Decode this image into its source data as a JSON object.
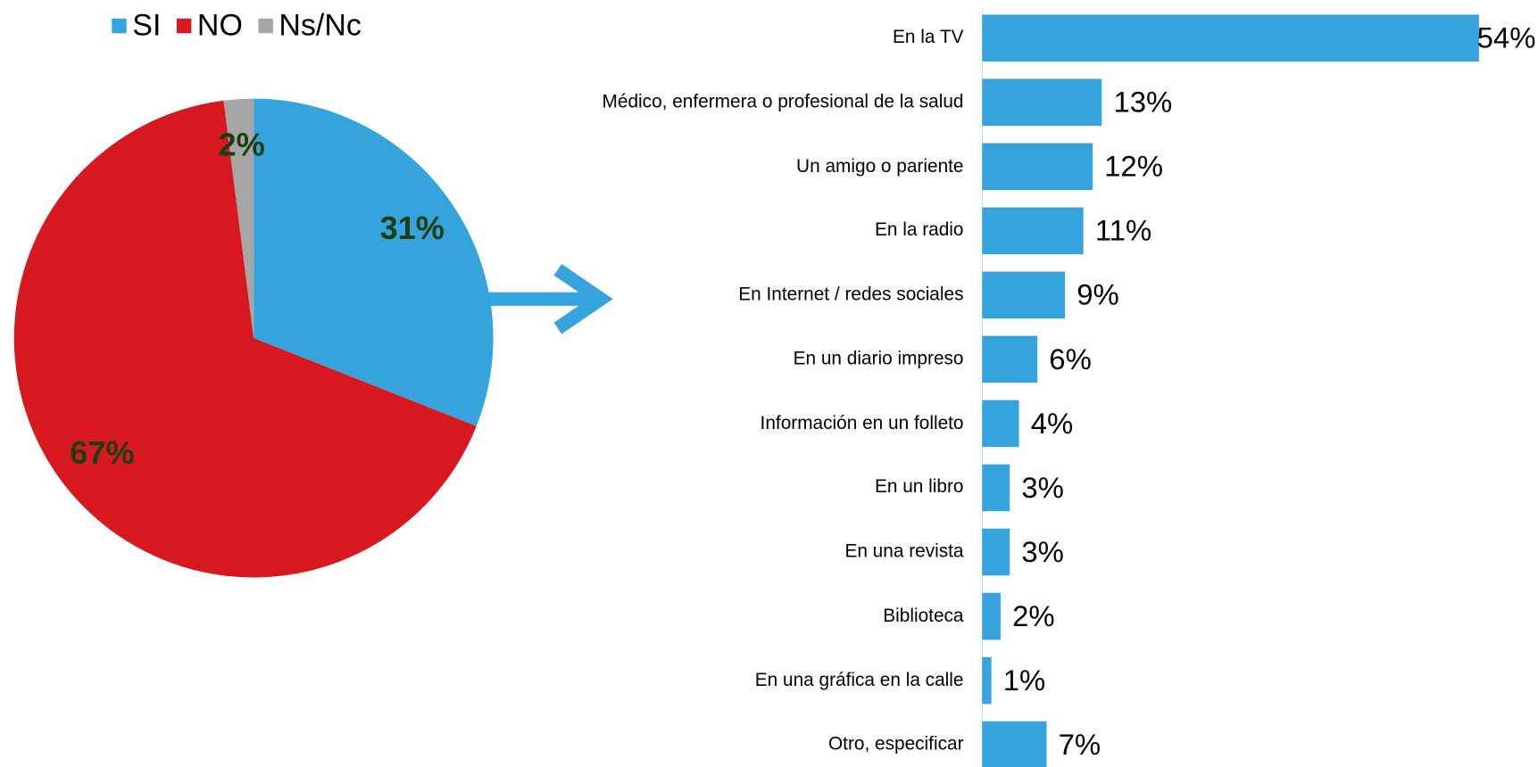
{
  "chart_data": [
    {
      "type": "pie",
      "categories": [
        "SI",
        "NO",
        "Ns/Nc"
      ],
      "values": [
        31,
        67,
        2
      ],
      "value_labels": [
        "31%",
        "67%",
        "2%"
      ],
      "colors": [
        "#35a4dc",
        "#d7191f",
        "#a6a6a6"
      ],
      "legend": "top"
    },
    {
      "type": "hbar",
      "categories": [
        "En la TV",
        "Médico, enfermera o profesional de la salud",
        "Un amigo o pariente",
        "En la radio",
        "En Internet / redes sociales",
        "En un diario impreso",
        "Información en un folleto",
        "En un libro",
        "En una revista",
        "Biblioteca",
        "En una gráfica en la calle",
        "Otro, especificar"
      ],
      "values": [
        54,
        13,
        12,
        11,
        9,
        6,
        4,
        3,
        3,
        2,
        1,
        7
      ],
      "value_labels": [
        "54%",
        "13%",
        "12%",
        "11%",
        "9%",
        "6%",
        "4%",
        "3%",
        "3%",
        "2%",
        "1%",
        "7%"
      ],
      "color": "#35a4dc"
    }
  ]
}
